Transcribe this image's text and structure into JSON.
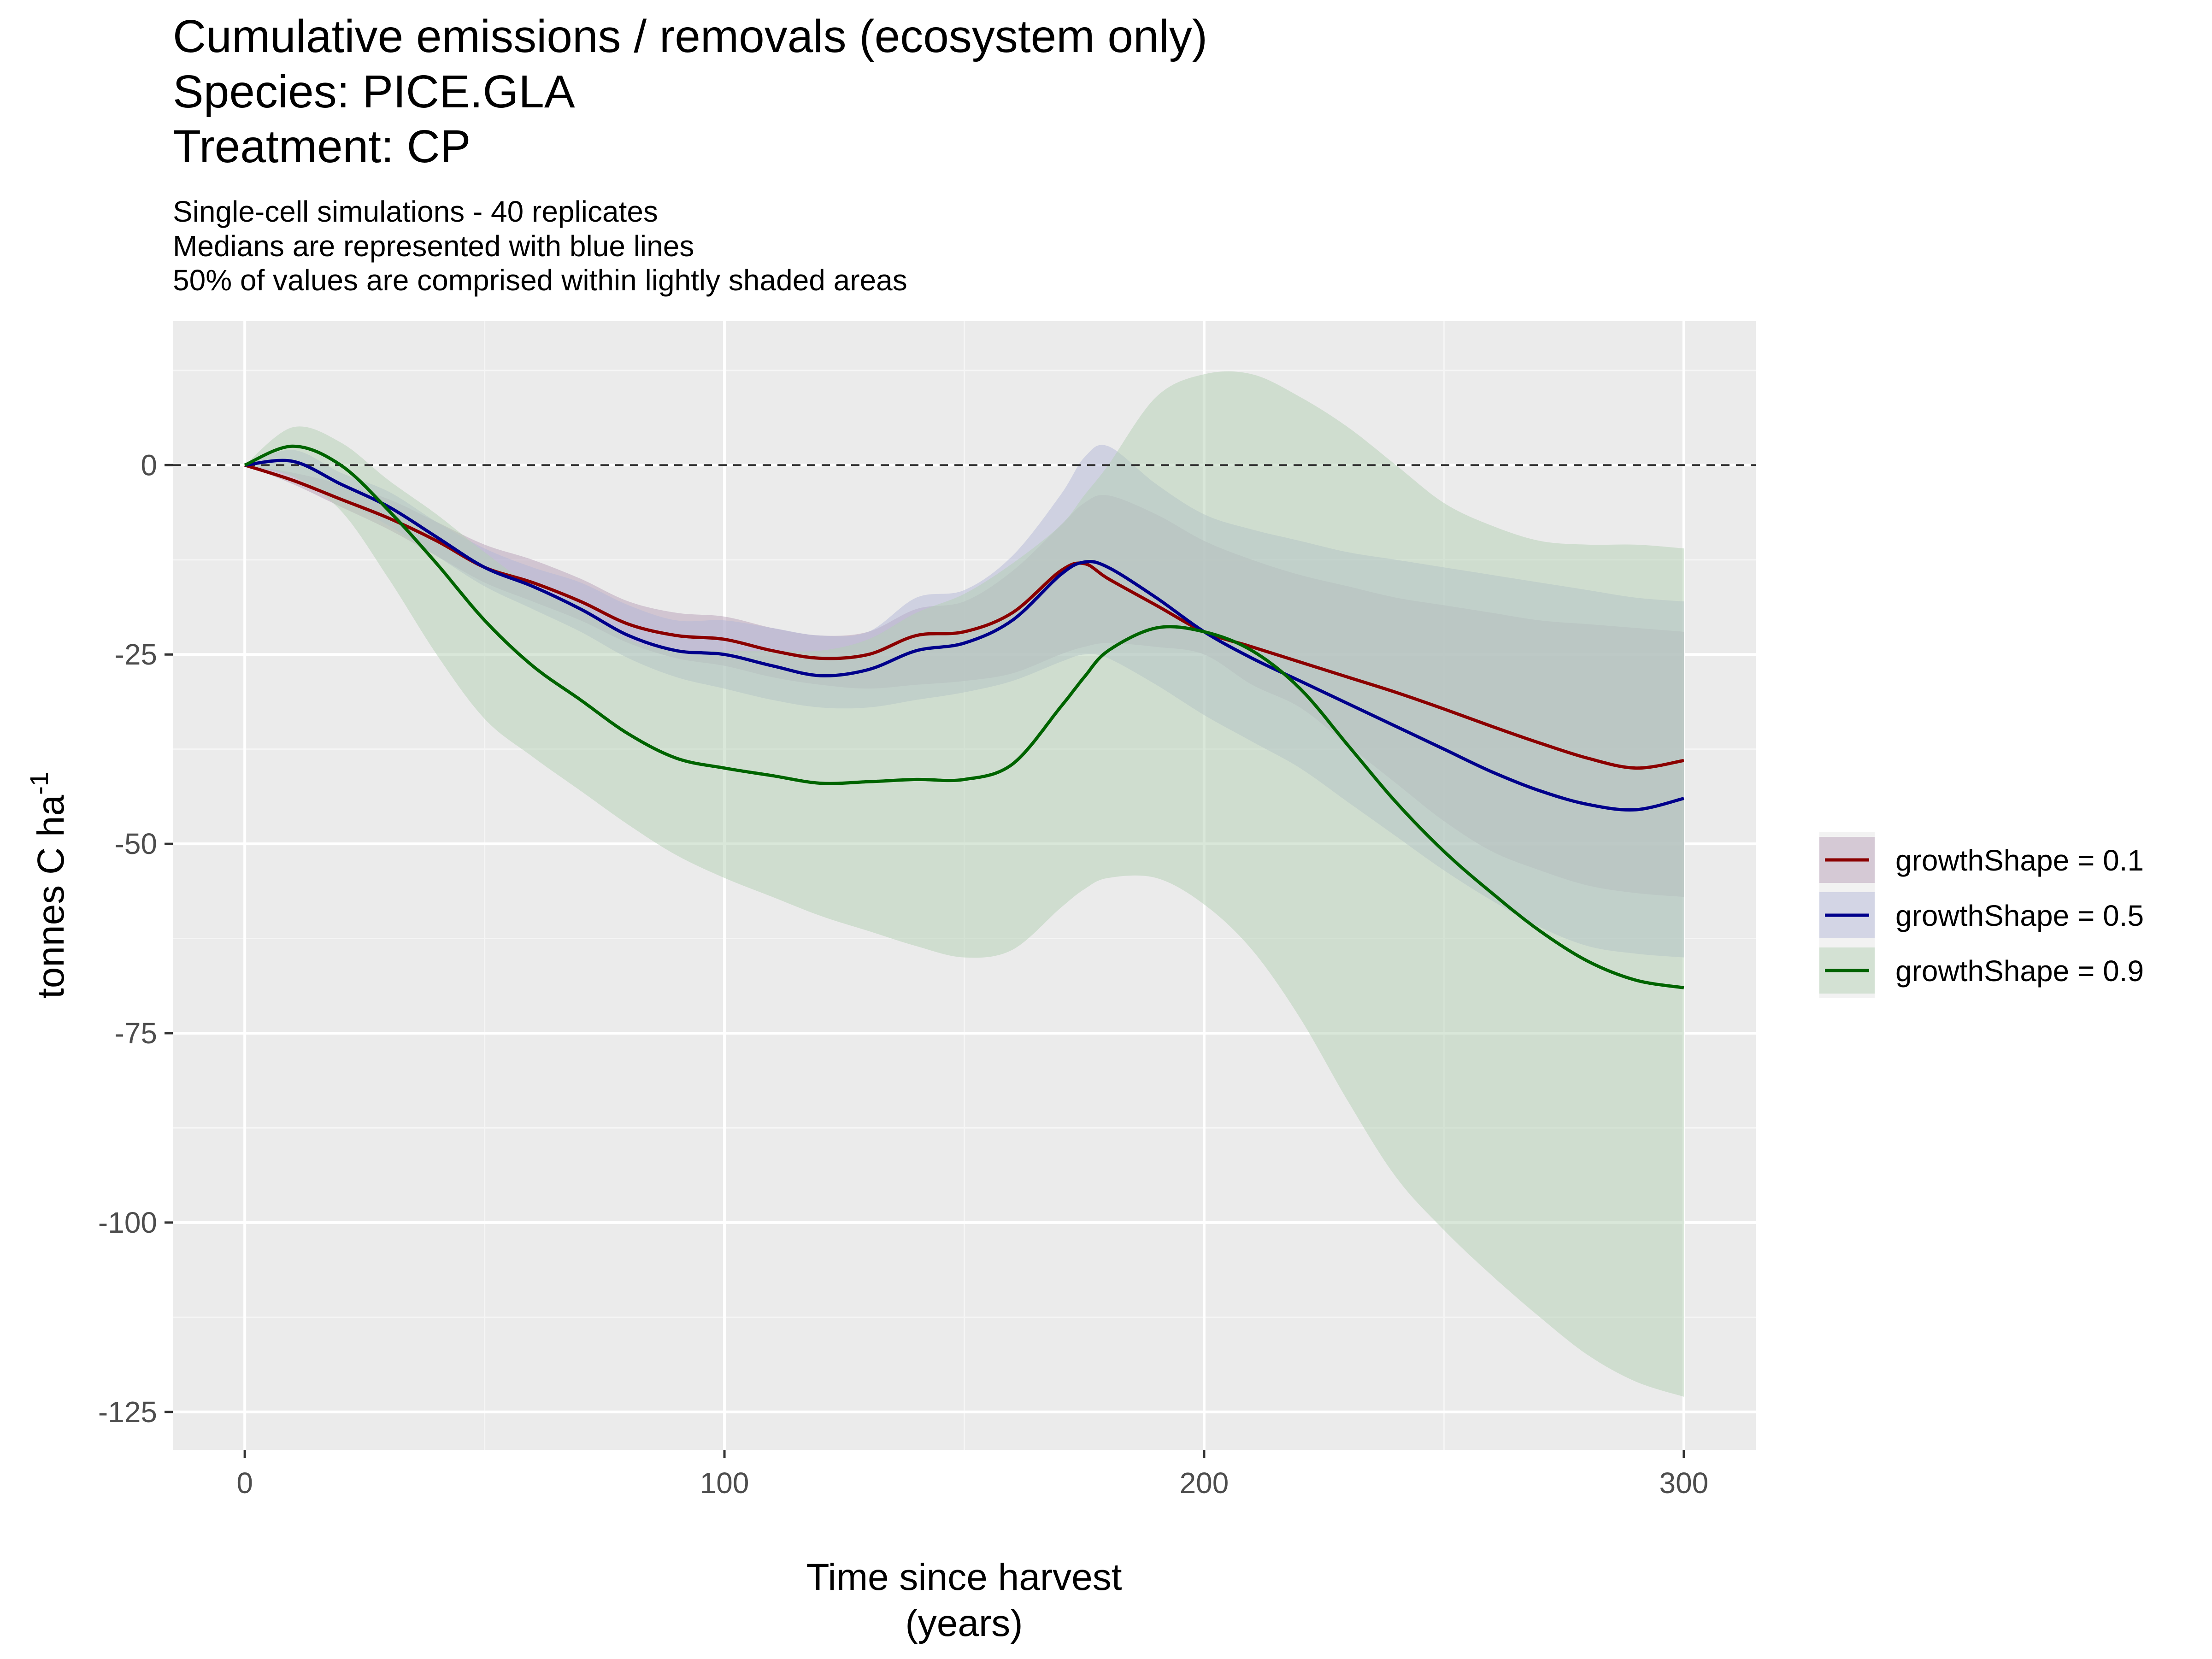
{
  "chart_data": {
    "type": "area",
    "title": "Cumulative emissions / removals (ecosystem only)",
    "title_lines": [
      "Cumulative emissions / removals (ecosystem only)",
      "Species: PICE.GLA",
      "Treatment: CP"
    ],
    "subtitle_lines": [
      "Single-cell simulations - 40 replicates",
      "Medians are represented with blue lines",
      "50% of values are comprised within lightly shaded areas"
    ],
    "xlabel_lines": [
      "Time since harvest",
      "(years)"
    ],
    "ylabel": "tonnes C ha",
    "ylabel_superscript": "-1",
    "xlim": [
      -15,
      315
    ],
    "ylim": [
      -130,
      19
    ],
    "x_ticks": [
      0,
      100,
      200,
      300
    ],
    "x_tick_labels": [
      "0",
      "100",
      "200",
      "300"
    ],
    "y_ticks": [
      0,
      -25,
      -50,
      -75,
      -100,
      -125
    ],
    "y_tick_labels": [
      "0",
      "-25",
      "-50",
      "-75",
      "-100",
      "-125"
    ],
    "reference_line": {
      "y": 0,
      "style": "dashed"
    },
    "grid": true,
    "legend_position": "right",
    "x": [
      0,
      10,
      20,
      30,
      40,
      50,
      60,
      70,
      80,
      90,
      100,
      110,
      120,
      130,
      140,
      150,
      160,
      170,
      175,
      180,
      190,
      200,
      210,
      220,
      230,
      240,
      250,
      260,
      270,
      280,
      290,
      300
    ],
    "series": [
      {
        "name": "growthShape = 0.1",
        "color": "#8b0000",
        "band_color": "#b8a0b8",
        "median": [
          0,
          -2,
          -4.5,
          -7,
          -10,
          -13.5,
          -15.5,
          -18,
          -21,
          -22.5,
          -23,
          -24.5,
          -25.5,
          -25,
          -22.5,
          -22,
          -19.5,
          -14,
          -13,
          -15,
          -18.5,
          -22,
          -24,
          -26,
          -28,
          -30,
          -32.2,
          -34.5,
          -36.7,
          -38.7,
          -40,
          -39
        ],
        "q_low": [
          0,
          -2.5,
          -5.5,
          -8.5,
          -12,
          -15.5,
          -18,
          -20.5,
          -23.5,
          -25.5,
          -26.5,
          -28,
          -29,
          -29.5,
          -29,
          -28.5,
          -27.5,
          -25,
          -24,
          -23.5,
          -24,
          -25,
          -29,
          -32,
          -37,
          -42,
          -47,
          -51,
          -53.5,
          -55.5,
          -56.5,
          -57
        ],
        "q_high": [
          0,
          -1,
          -2.5,
          -4.5,
          -7.5,
          -10.5,
          -12.5,
          -15,
          -18,
          -19.5,
          -20,
          -21.5,
          -22.5,
          -22,
          -19,
          -18,
          -14,
          -8,
          -5,
          -4,
          -6.5,
          -10,
          -12.5,
          -14.5,
          -16,
          -17.5,
          -18.5,
          -19.5,
          -20.5,
          -21,
          -21.5,
          -22
        ]
      },
      {
        "name": "growthShape = 0.5",
        "color": "#00008b",
        "band_color": "#b4b8d8",
        "median": [
          0,
          0.5,
          -2.5,
          -5.5,
          -9.5,
          -13.5,
          -16,
          -19,
          -22.5,
          -24.5,
          -25,
          -26.5,
          -27.8,
          -27,
          -24.5,
          -23.5,
          -20.5,
          -14.5,
          -12.8,
          -13.5,
          -17.5,
          -22,
          -25.5,
          -28.5,
          -31.5,
          -34.5,
          -37.5,
          -40.5,
          -43,
          -44.8,
          -45.5,
          -44
        ],
        "q_low": [
          0,
          -1.5,
          -4.5,
          -8,
          -12,
          -16,
          -19,
          -22,
          -25.5,
          -28,
          -29.5,
          -31,
          -32,
          -32,
          -31,
          -30,
          -28.5,
          -26,
          -25,
          -25.5,
          -29,
          -33,
          -36.5,
          -40,
          -44.5,
          -49,
          -53.5,
          -57.5,
          -61,
          -63.5,
          -64.5,
          -65
        ],
        "q_high": [
          0,
          2,
          -1,
          -3.5,
          -7.5,
          -11,
          -13.5,
          -15.5,
          -18.5,
          -20.5,
          -20.5,
          -21.5,
          -22.5,
          -22,
          -17.5,
          -16.5,
          -12,
          -4,
          1,
          2.5,
          -2.5,
          -6.5,
          -8.5,
          -10,
          -11.5,
          -12.5,
          -13.5,
          -14.5,
          -15.5,
          -16.5,
          -17.5,
          -18
        ]
      },
      {
        "name": "growthShape = 0.9",
        "color": "#006400",
        "band_color": "#b4cfb4",
        "median": [
          0,
          2.5,
          0,
          -6,
          -13,
          -20.5,
          -26.5,
          -31,
          -35.5,
          -38.7,
          -40,
          -41,
          -42,
          -41.8,
          -41.5,
          -41.5,
          -39.5,
          -32,
          -28,
          -24.5,
          -21.5,
          -22,
          -24.5,
          -29.5,
          -37,
          -44.5,
          -51,
          -56.5,
          -61.5,
          -65.5,
          -68,
          -69
        ],
        "q_low": [
          0,
          -1.5,
          -6,
          -15,
          -25,
          -33.5,
          -38.5,
          -43,
          -47.5,
          -51.5,
          -54.5,
          -57,
          -59.5,
          -61.5,
          -63.5,
          -65,
          -64,
          -58.5,
          -56,
          -54.5,
          -54.5,
          -58,
          -64,
          -73,
          -84,
          -94,
          -101,
          -107,
          -112.5,
          -117.5,
          -121,
          -123
        ],
        "q_high": [
          0,
          5,
          3,
          -2,
          -6.5,
          -11.5,
          -16,
          -18.5,
          -23,
          -24.5,
          -24.5,
          -24.5,
          -24.5,
          -23,
          -19.5,
          -17,
          -13,
          -8,
          -4,
          0,
          9,
          12,
          12,
          9,
          5,
          0,
          -5,
          -8,
          -10,
          -10.5,
          -10.5,
          -11
        ]
      }
    ]
  },
  "colors": {
    "panel_background": "#ebebeb",
    "grid_major": "#ffffff",
    "grid_minor": "#f5f5f5",
    "tick_text": "#4d4d4d",
    "reference_line": "#333333"
  }
}
